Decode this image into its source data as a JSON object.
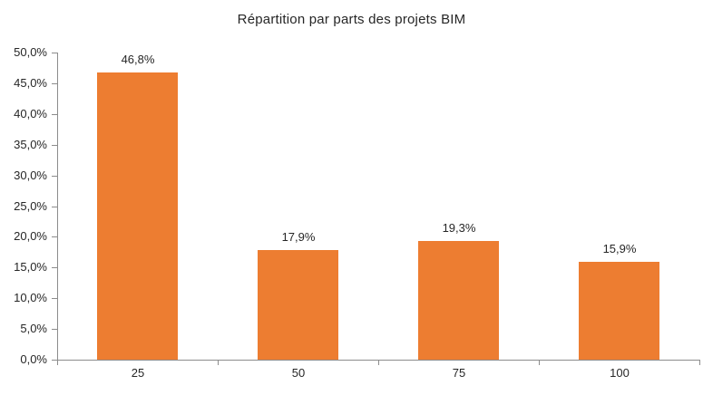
{
  "chart_data": {
    "type": "bar",
    "title": "Répartition par parts des projets BIM",
    "categories": [
      "25",
      "50",
      "75",
      "100"
    ],
    "values": [
      46.8,
      17.9,
      19.3,
      15.9
    ],
    "value_labels": [
      "46,8%",
      "17,9%",
      "19,3%",
      "15,9%"
    ],
    "y_ticks": [
      {
        "value": 0,
        "label": "0,0%"
      },
      {
        "value": 5,
        "label": "5,0%"
      },
      {
        "value": 10,
        "label": "10,0%"
      },
      {
        "value": 15,
        "label": "15,0%"
      },
      {
        "value": 20,
        "label": "20,0%"
      },
      {
        "value": 25,
        "label": "25,0%"
      },
      {
        "value": 30,
        "label": "30,0%"
      },
      {
        "value": 35,
        "label": "35,0%"
      },
      {
        "value": 40,
        "label": "40,0%"
      },
      {
        "value": 45,
        "label": "45,0%"
      },
      {
        "value": 50,
        "label": "50,0%"
      }
    ],
    "ylim": [
      0,
      50
    ],
    "grid": false,
    "legend": "none",
    "bar_color": "#ED7D31",
    "axis_color": "#8C8C8C",
    "text_color": "#262626",
    "background_color": "#FFFFFF"
  }
}
